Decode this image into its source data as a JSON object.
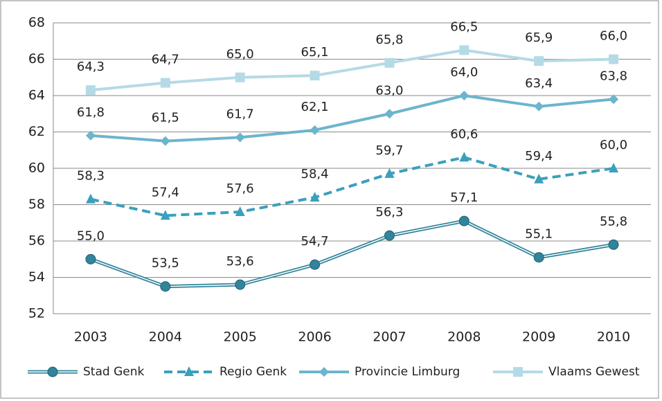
{
  "chart_data": {
    "type": "line",
    "categories": [
      "2003",
      "2004",
      "2005",
      "2006",
      "2007",
      "2008",
      "2009",
      "2010"
    ],
    "ylim": [
      52,
      68
    ],
    "yticks": [
      52,
      54,
      56,
      58,
      60,
      62,
      64,
      66,
      68
    ],
    "grid": true,
    "legend": "bottom",
    "series": [
      {
        "name": "Stad Genk",
        "color": "#31849b",
        "style": "double",
        "marker": "circle",
        "values": [
          55.0,
          53.5,
          53.6,
          54.7,
          56.3,
          57.1,
          55.1,
          55.8
        ],
        "value_labels": [
          "55,0",
          "53,5",
          "53,6",
          "54,7",
          "56,3",
          "57,1",
          "55,1",
          "55,8"
        ]
      },
      {
        "name": "Regio Genk",
        "color": "#3aa0bc",
        "style": "dashed",
        "marker": "triangle",
        "values": [
          58.3,
          57.4,
          57.6,
          58.4,
          59.7,
          60.6,
          59.4,
          60.0
        ],
        "value_labels": [
          "58,3",
          "57,4",
          "57,6",
          "58,4",
          "59,7",
          "60,6",
          "59,4",
          "60,0"
        ]
      },
      {
        "name": "Provincie Limburg",
        "color": "#6cb5cc",
        "style": "solid",
        "marker": "diamond",
        "values": [
          61.8,
          61.5,
          61.7,
          62.1,
          63.0,
          64.0,
          63.4,
          63.8
        ],
        "value_labels": [
          "61,8",
          "61,5",
          "61,7",
          "62,1",
          "63,0",
          "64,0",
          "63,4",
          "63,8"
        ]
      },
      {
        "name": "Vlaams Gewest",
        "color": "#b4dae6",
        "style": "solid",
        "marker": "square",
        "values": [
          64.3,
          64.7,
          65.0,
          65.1,
          65.8,
          66.5,
          65.9,
          66.0
        ],
        "value_labels": [
          "64,3",
          "64,7",
          "65,0",
          "65,1",
          "65,8",
          "66,5",
          "65,9",
          "66,0"
        ]
      }
    ]
  }
}
